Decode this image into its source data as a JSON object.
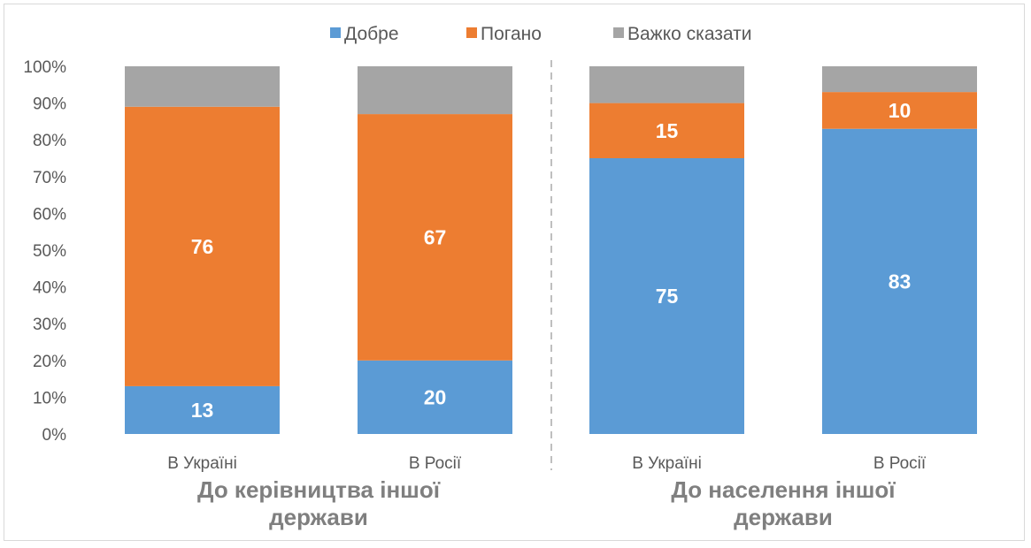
{
  "chart_data": {
    "type": "bar",
    "stacked": true,
    "percent": true,
    "ylim": [
      0,
      100
    ],
    "yticks": [
      "0%",
      "10%",
      "20%",
      "30%",
      "40%",
      "50%",
      "60%",
      "70%",
      "80%",
      "90%",
      "100%"
    ],
    "categories": [
      "В Україні",
      "В Росії",
      "В Україні",
      "В Росії"
    ],
    "groups": [
      {
        "label_lines": [
          "До керівництва іншої",
          "держави"
        ],
        "categories": [
          0,
          1
        ]
      },
      {
        "label_lines": [
          "До населення іншої",
          "держави"
        ],
        "categories": [
          2,
          3
        ]
      }
    ],
    "series": [
      {
        "name": "Добре",
        "color": "#5B9BD5",
        "values": [
          13,
          20,
          75,
          83
        ],
        "labels": [
          "13",
          "20",
          "75",
          "83"
        ]
      },
      {
        "name": "Погано",
        "color": "#ED7D31",
        "values": [
          76,
          67,
          15,
          10
        ],
        "labels": [
          "76",
          "67",
          "15",
          "10"
        ]
      },
      {
        "name": "Важко сказати",
        "color": "#A5A5A5",
        "values": [
          11,
          13,
          10,
          7
        ],
        "labels": null
      }
    ],
    "legend": "top",
    "grid": false,
    "group_separator": "dashed"
  }
}
